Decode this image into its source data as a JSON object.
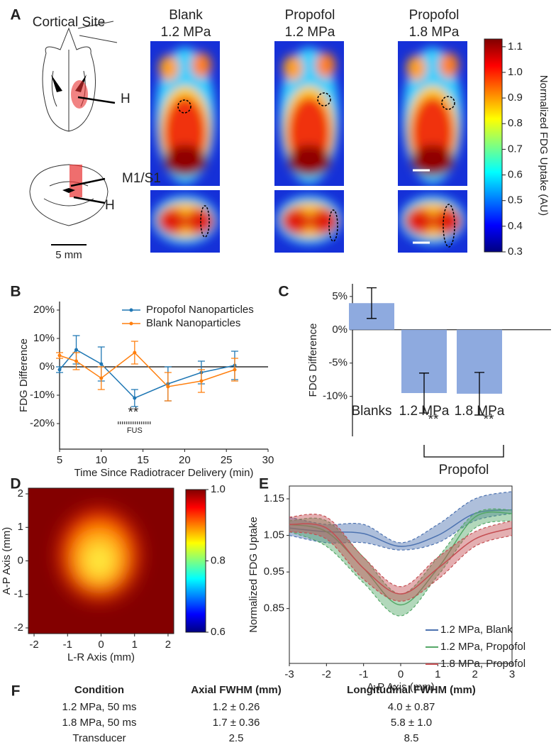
{
  "panel_labels": [
    "A",
    "B",
    "C",
    "D",
    "E",
    "F"
  ],
  "panel_a": {
    "site_title": "Cortical Site",
    "labels": [
      "H",
      "M1/S1",
      "H"
    ],
    "scale_bar": "5 mm",
    "columns": [
      [
        "Blank",
        "1.2 MPa"
      ],
      [
        "Propofol",
        "1.2 MPa"
      ],
      [
        "Propofol",
        "1.8 MPa"
      ]
    ],
    "colorbar": {
      "label": "Normalized FDG Uptake (AU)",
      "clim": [
        0.3,
        1.13
      ],
      "ticks": [
        1.1,
        {
          "value": 1,
          "label": "1.0"
        },
        0.9,
        0.8,
        0.7,
        0.6,
        0.5,
        0.4,
        0.3
      ]
    }
  },
  "chart_data": [
    {
      "type": "line",
      "x_label": "Time Since Radiotracer Delivery (min)",
      "y_label": "FDG Difference",
      "xlim": [
        5,
        30
      ],
      "xticks": [
        5,
        10,
        15,
        20,
        25,
        30
      ],
      "ylim": [
        -29,
        23
      ],
      "yticks": [
        {
          "value": 20,
          "label": "20%"
        },
        {
          "value": 10,
          "label": "10%"
        },
        {
          "value": 0,
          "label": "0%"
        },
        {
          "value": -10,
          "label": "-10%"
        },
        {
          "value": -20,
          "label": "-20%"
        }
      ],
      "legend": "upper right",
      "annotations": [
        "**",
        "FUS"
      ],
      "series": [
        {
          "name": "Propofol Nanoparticles",
          "color": "#1f77b4",
          "x": [
            5,
            7,
            10,
            14,
            18,
            22,
            26
          ],
          "values": [
            -1,
            6,
            1,
            -11,
            -6,
            -2,
            0.5
          ],
          "errors": [
            1,
            5,
            6,
            3,
            6,
            4,
            5
          ]
        },
        {
          "name": "Blank Nanoparticles",
          "color": "#ff7f0e",
          "x": [
            5,
            7,
            10,
            14,
            18,
            22,
            26
          ],
          "values": [
            4,
            2,
            -4,
            5,
            -7,
            -5,
            -1
          ],
          "errors": [
            1,
            3,
            4,
            4,
            5,
            4,
            4
          ]
        }
      ]
    },
    {
      "type": "bar",
      "y_label": "FDG Difference",
      "categories": [
        "Blanks",
        "1.2 MPa",
        "1.8 MPa"
      ],
      "values": [
        4,
        -9.5,
        -9.6
      ],
      "errors": [
        2.3,
        3,
        3.2
      ],
      "color": "#8eaadf",
      "ylim": [
        -16,
        6.9
      ],
      "yticks": [
        {
          "value": 5,
          "label": "5%"
        },
        {
          "value": 0,
          "label": "0%"
        },
        {
          "value": -5,
          "label": "-5%"
        },
        {
          "value": -10,
          "label": "-10%"
        }
      ],
      "group_label": "Propofol",
      "annotations": [
        "**",
        "**"
      ]
    },
    {
      "type": "heatmap",
      "x_label": "L-R Axis (mm)",
      "y_label": "A-P Axis (mm)",
      "xlim": [
        -2.17,
        2.17
      ],
      "ylim": [
        -2.17,
        2.17
      ],
      "xticks": [
        -2,
        -1,
        0,
        1,
        2
      ],
      "yticks": [
        -2,
        -1,
        0,
        1,
        2
      ],
      "clim": [
        0.6,
        1.0
      ],
      "cticks": [
        {
          "value": 1,
          "label": "1.0"
        },
        0.8,
        0.6
      ]
    },
    {
      "type": "band",
      "x_label": "A-P Axis (mm)",
      "y_label": "Normalized FDG Uptake",
      "xlim": [
        -3,
        3
      ],
      "xticks": [
        -3,
        -2,
        -1,
        0,
        1,
        2,
        3
      ],
      "ylim": [
        0.7,
        1.185
      ],
      "yticks": [
        0.85,
        0.95,
        1.05,
        1.15
      ],
      "legend": "lower right",
      "x": [
        -3,
        -2,
        -1,
        0,
        1,
        2,
        3
      ],
      "series": [
        {
          "name": "1.2 MPa, Blank",
          "color": "#4c72b0",
          "values": [
            1.07,
            1.06,
            1.055,
            1.02,
            1.05,
            1.11,
            1.12
          ],
          "lower": [
            1.05,
            1.03,
            1.03,
            1.01,
            1.03,
            1.09,
            1.11
          ],
          "upper": [
            1.1,
            1.08,
            1.08,
            1.03,
            1.08,
            1.15,
            1.17
          ]
        },
        {
          "name": "1.2 MPa, Propofol",
          "color": "#55a868",
          "values": [
            1.08,
            1.06,
            0.96,
            0.86,
            0.96,
            1.1,
            1.11
          ],
          "lower": [
            1.06,
            1.02,
            0.92,
            0.83,
            0.94,
            1.07,
            1.09
          ],
          "upper": [
            1.09,
            1.09,
            0.99,
            0.89,
            0.99,
            1.11,
            1.12
          ]
        },
        {
          "name": "1.8 MPa, Propofol",
          "color": "#c44e52",
          "values": [
            1.08,
            1.07,
            0.96,
            0.89,
            0.96,
            1.04,
            1.07
          ],
          "lower": [
            1.06,
            1.04,
            0.93,
            0.87,
            0.93,
            1.02,
            1.05
          ],
          "upper": [
            1.1,
            1.1,
            0.99,
            0.91,
            0.99,
            1.06,
            1.09
          ]
        }
      ]
    }
  ],
  "table": {
    "header": [
      "Condition",
      "Axial FWHM (mm)",
      "Longitudinal FWHM (mm)"
    ],
    "rows": [
      [
        "1.2 MPa, 50 ms",
        "1.2 ± 0.26",
        "4.0 ± 0.87"
      ],
      [
        "1.8 MPa, 50 ms",
        "1.7 ± 0.36",
        "5.8 ± 1.0"
      ],
      [
        "Transducer",
        "2.5",
        "8.5"
      ]
    ]
  }
}
